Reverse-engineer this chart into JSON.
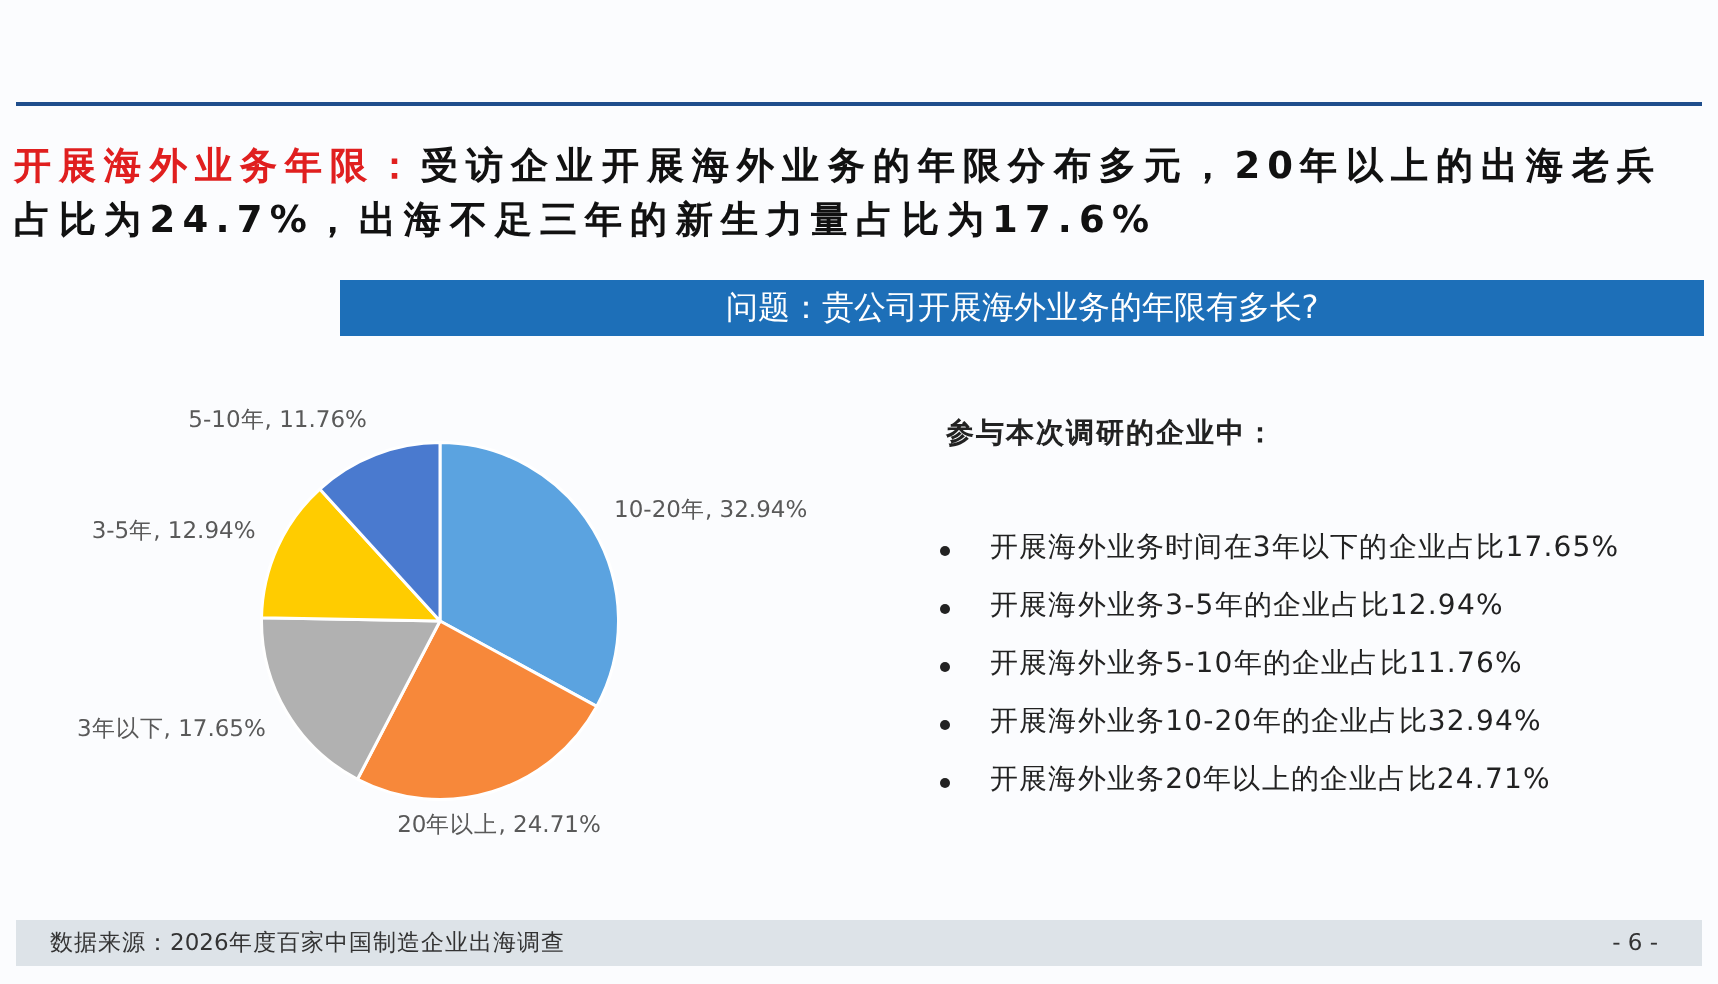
{
  "chart_data": {
    "type": "pie",
    "title": "开展海外业务年限：",
    "subtitle": "受访企业开展海外业务的年限分布多元，20年以上的出海老兵占比为24.7%，出海不足三年的新生力量占比为17.6%",
    "categories": [
      "10-20年",
      "20年以上",
      "3年以下",
      "3-5年",
      "5-10年"
    ],
    "values": [
      32.94,
      24.71,
      17.65,
      12.94,
      11.76
    ],
    "colors": [
      "#5ba3e0",
      "#f7883a",
      "#b1b1b1",
      "#ffcc00",
      "#4a7acf"
    ],
    "value_labels": [
      "32.94%",
      "24.71%",
      "17.65%",
      "12.94%",
      "11.76%"
    ],
    "legend": false,
    "annotations": [
      "问题：贵公司开展海外业务的年限有多长?",
      "参与本次调研的企业中：",
      "开展海外业务时间在3年以下的企业占比17.65%",
      "开展海外业务3-5年的企业占比12.94%",
      "开展海外业务5-10年的企业占比11.76%",
      "开展海外业务10-20年的企业占比32.94%",
      "开展海外业务20年以上的企业占比24.71%",
      "数据来源：2026年度百家中国制造企业出海调查",
      "- 6 -"
    ]
  }
}
